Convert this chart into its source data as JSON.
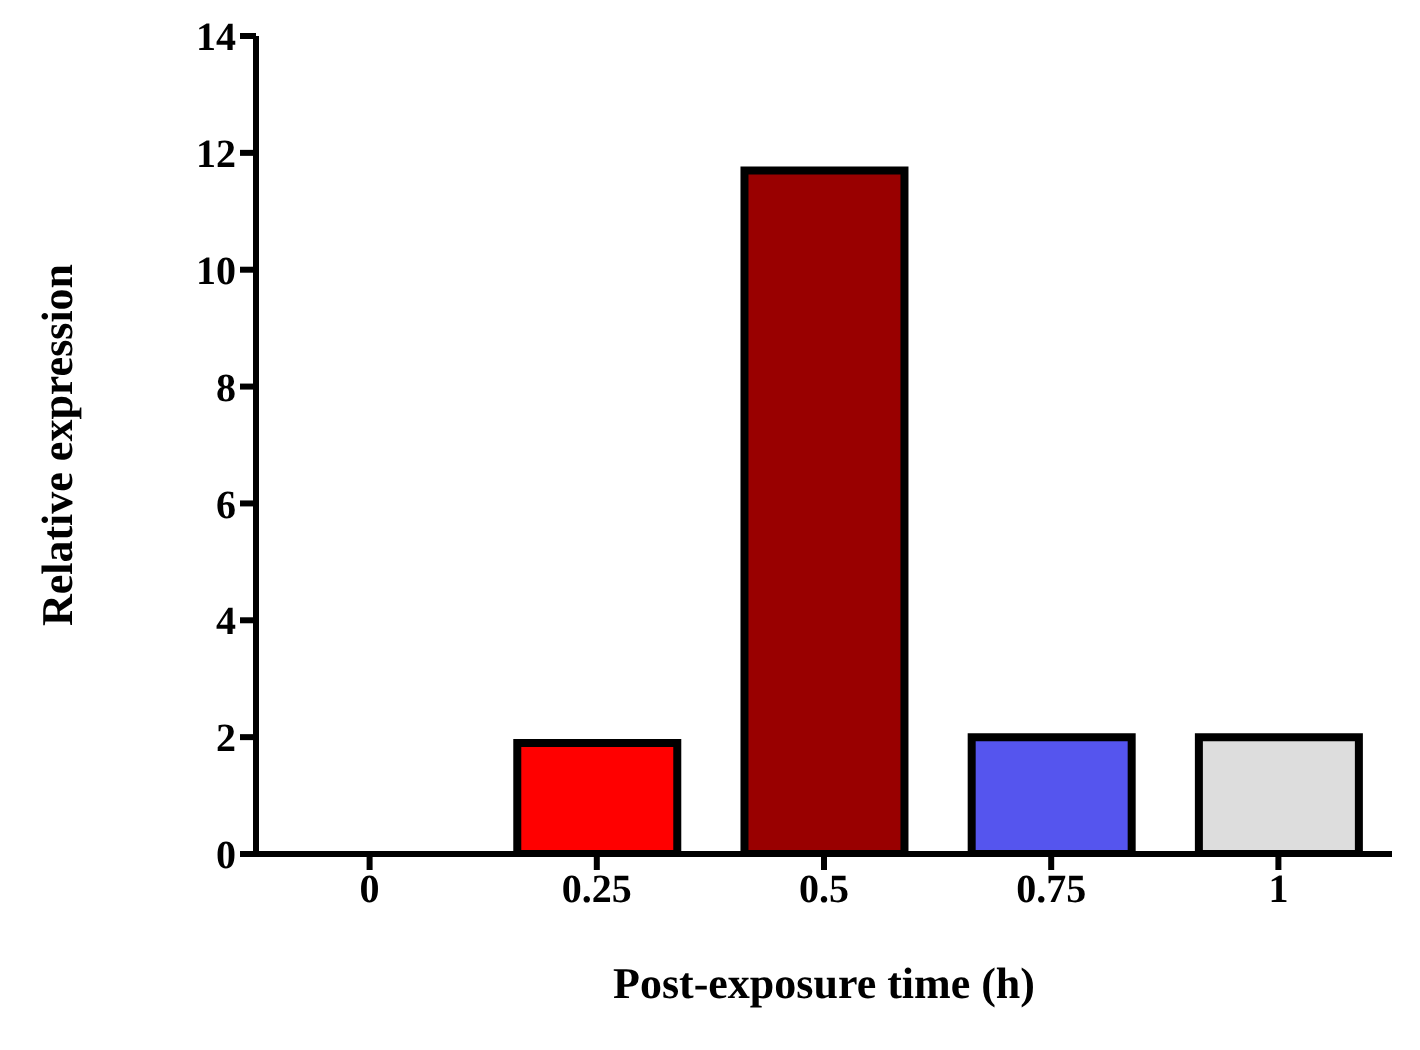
{
  "chart_data": {
    "type": "bar",
    "xlabel": "Post-exposure time (h)",
    "ylabel": "Relative expression",
    "categories": [
      "0",
      "0.25",
      "0.5",
      "0.75",
      "1"
    ],
    "values": [
      0,
      1.9,
      11.7,
      2.0,
      2.0
    ],
    "colors": [
      "#ff0000",
      "#ff0000",
      "#990000",
      "#5555ee",
      "#dddddd"
    ],
    "ylim": [
      0,
      14
    ],
    "yticks": [
      0,
      2,
      4,
      6,
      8,
      10,
      12,
      14
    ],
    "grid": false
  }
}
